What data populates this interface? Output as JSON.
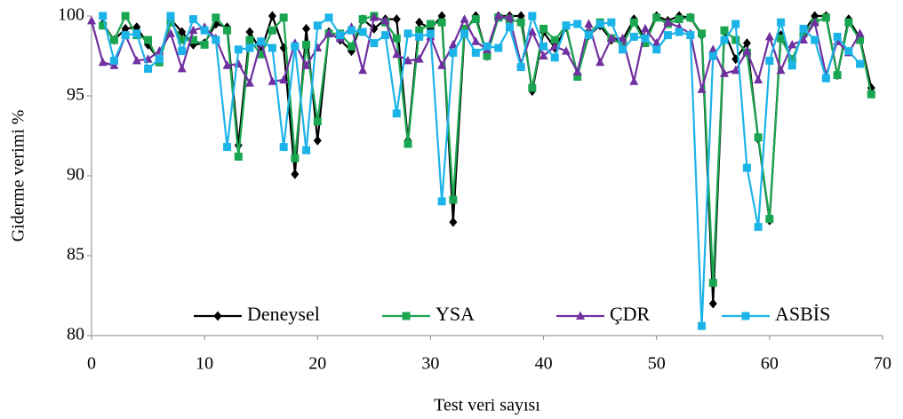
{
  "chart_data": {
    "type": "line",
    "y_label": "Giderme verimi %",
    "x_label": "Test  veri sayısı",
    "x": [
      0,
      1,
      2,
      3,
      4,
      5,
      6,
      7,
      8,
      9,
      10,
      11,
      12,
      13,
      14,
      15,
      16,
      17,
      18,
      19,
      20,
      21,
      22,
      23,
      24,
      25,
      26,
      27,
      28,
      29,
      30,
      31,
      32,
      33,
      34,
      35,
      36,
      37,
      38,
      39,
      40,
      41,
      42,
      43,
      44,
      45,
      46,
      47,
      48,
      49,
      50,
      51,
      52,
      53,
      54,
      55,
      56,
      57,
      58,
      59,
      60,
      61,
      62,
      63,
      64,
      65,
      66,
      67,
      68,
      69
    ],
    "xlim": [
      0,
      70
    ],
    "xticks": [
      0,
      10,
      20,
      30,
      40,
      50,
      60,
      70
    ],
    "ylim": [
      80,
      100
    ],
    "yticks": [
      80,
      85,
      90,
      95,
      100
    ],
    "grid": false,
    "legend": "bottom",
    "series": [
      {
        "name": "Deneysel",
        "color": "#000000",
        "marker": "diamond",
        "values": [
          null,
          99.5,
          98.5,
          99.2,
          99.3,
          98.2,
          97.2,
          99.8,
          99.0,
          98.2,
          98.3,
          99.5,
          99.3,
          91.9,
          99.0,
          97.8,
          100,
          98.0,
          90.1,
          99.2,
          92.2,
          99.0,
          98.5,
          97.8,
          99.8,
          99.2,
          99.8,
          99.8,
          92.2,
          99.6,
          99.2,
          100,
          87.1,
          99.0,
          100,
          97.5,
          100,
          100,
          100,
          95.3,
          99.0,
          98.0,
          99.3,
          96.3,
          98.8,
          99.4,
          98.5,
          98.5,
          99.8,
          98.5,
          100,
          99.7,
          100,
          99.9,
          98.8,
          82.0,
          99.0,
          97.3,
          98.3,
          92.3,
          87.2,
          98.8,
          97.2,
          99.0,
          100,
          100,
          96.3,
          99.8,
          98.6,
          95.5
        ]
      },
      {
        "name": "YSA",
        "color": "#1aa550",
        "marker": "square",
        "values": [
          null,
          99.4,
          98.5,
          100,
          98.8,
          98.5,
          97.1,
          99.6,
          98.5,
          98.5,
          98.2,
          99.9,
          99.1,
          91.2,
          98.5,
          97.6,
          99.1,
          99.9,
          91.1,
          98.2,
          93.4,
          98.9,
          98.9,
          98.1,
          99.8,
          100,
          99.6,
          98.6,
          92.0,
          99.1,
          99.5,
          99.6,
          88.5,
          99.2,
          99.8,
          97.5,
          99.9,
          99.8,
          99.6,
          95.5,
          99.2,
          98.5,
          99.4,
          96.2,
          98.9,
          99.6,
          98.6,
          98.2,
          99.6,
          98.3,
          99.9,
          99.5,
          99.8,
          99.9,
          98.9,
          83.3,
          99.1,
          98.5,
          97.7,
          92.4,
          87.3,
          98.6,
          97.3,
          98.9,
          99.6,
          99.9,
          96.3,
          99.6,
          98.5,
          95.1
        ]
      },
      {
        "name": "ÇDR",
        "color": "#7030a0",
        "marker": "triangle",
        "values": [
          99.7,
          97.1,
          96.9,
          98.8,
          97.2,
          97.3,
          97.8,
          98.9,
          96.7,
          99.1,
          99.3,
          98.6,
          96.9,
          97.0,
          95.8,
          98.4,
          95.9,
          96.0,
          98.3,
          96.9,
          98.0,
          98.9,
          98.6,
          99.3,
          96.6,
          99.9,
          99.7,
          97.6,
          97.2,
          97.3,
          98.7,
          96.9,
          98.2,
          99.8,
          98.4,
          97.9,
          100,
          99.9,
          97.0,
          99.0,
          97.5,
          98.1,
          97.8,
          96.5,
          99.5,
          97.1,
          98.6,
          98.6,
          95.9,
          99.2,
          98.3,
          99.6,
          99.3,
          98.9,
          95.4,
          97.9,
          96.4,
          96.6,
          97.8,
          96.0,
          98.7,
          96.6,
          98.2,
          98.5,
          99.6,
          96.3,
          98.4,
          97.7,
          98.9,
          null
        ]
      },
      {
        "name": "ASBİS",
        "color": "#1cb4e8",
        "marker": "square",
        "values": [
          null,
          100,
          97.2,
          98.8,
          98.9,
          96.7,
          97.3,
          100,
          97.8,
          99.8,
          99.1,
          98.5,
          91.8,
          97.9,
          98.0,
          98.4,
          98.0,
          91.8,
          98.1,
          91.6,
          99.4,
          99.9,
          98.8,
          99.1,
          99.0,
          98.3,
          98.8,
          93.9,
          98.9,
          98.7,
          98.9,
          88.4,
          97.7,
          98.9,
          97.7,
          98.1,
          98.0,
          99.3,
          96.8,
          100,
          98.1,
          97.4,
          99.4,
          99.5,
          98.8,
          99.5,
          99.6,
          97.9,
          98.7,
          98.6,
          97.9,
          98.8,
          99.0,
          98.8,
          80.6,
          97.5,
          98.5,
          99.5,
          90.5,
          86.8,
          97.2,
          99.6,
          96.9,
          99.2,
          98.5,
          96.1,
          98.7,
          97.8,
          97.0,
          null
        ]
      }
    ]
  }
}
